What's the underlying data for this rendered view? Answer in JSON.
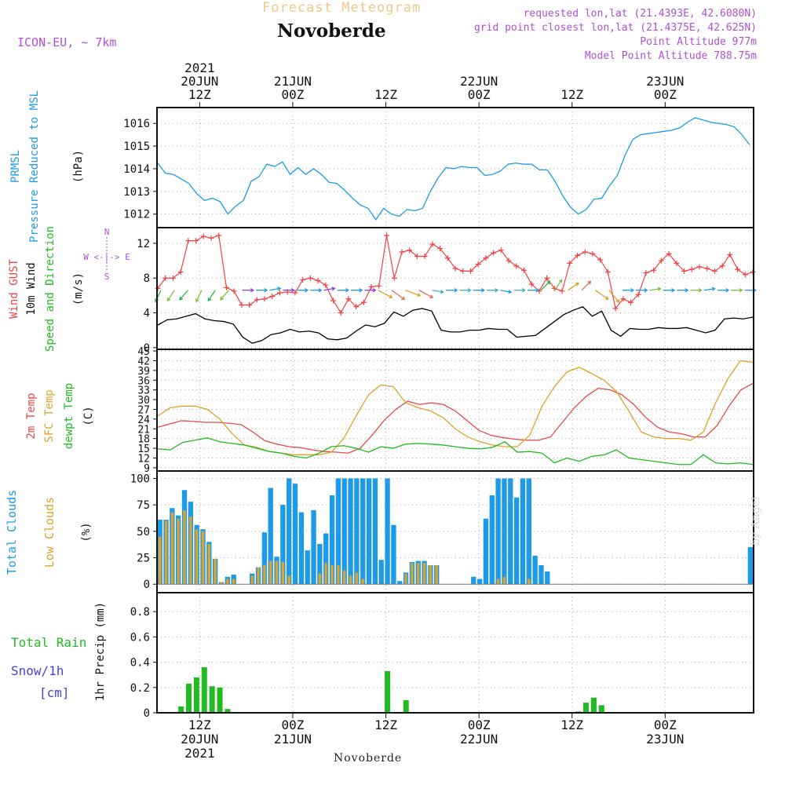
{
  "header": {
    "title": "Novoberde",
    "subtitle": "Forecast Meteogram",
    "model": "ICON-EU, ~ 7km",
    "requested": "requested lon,lat (21.4393E, 42.6080N)",
    "gridpoint": "grid point closest lon,lat (21.4375E, 42.625N)",
    "point_alt": "Point Altitude 977m",
    "model_alt": "Model Point Altitude 788.75m",
    "footer": "Novoberde",
    "watermark": "by Angel"
  },
  "time_axis": {
    "top": [
      {
        "t": 12,
        "l1": "2021",
        "l2": "20JUN",
        "l3": "12Z"
      },
      {
        "t": 24,
        "l2": "21JUN",
        "l3": "00Z"
      },
      {
        "t": 36,
        "l3": "12Z"
      },
      {
        "t": 48,
        "l2": "22JUN",
        "l3": "00Z"
      },
      {
        "t": 60,
        "l3": "12Z"
      },
      {
        "t": 72,
        "l2": "23JUN",
        "l3": "00Z"
      }
    ],
    "bottom": [
      {
        "t": 12,
        "l1": "12Z",
        "l2": "20JUN",
        "l3": "2021"
      },
      {
        "t": 24,
        "l1": "00Z",
        "l2": "21JUN"
      },
      {
        "t": 36,
        "l1": "12Z"
      },
      {
        "t": 48,
        "l1": "00Z",
        "l2": "22JUN"
      },
      {
        "t": 60,
        "l1": "12Z"
      },
      {
        "t": 72,
        "l1": "00Z",
        "l2": "23JUN"
      }
    ],
    "t_range": [
      6.5,
      83.4
    ]
  },
  "colors": {
    "pressure": "#1e9be8",
    "gust": "#ee4444",
    "wind": "#000000",
    "t2m": "#e84a4a",
    "tsfc": "#e0a32a",
    "dewpt": "#22bb22",
    "total_cloud": "#1e9be8",
    "low_cloud": "#e0a32a",
    "rain": "#22bb22",
    "snow": "#4444dd",
    "title_pink": "#b050d8",
    "subtitle_gold": "#f0c88a",
    "grid": "#aaaaaa"
  },
  "chart_data": [
    {
      "type": "line",
      "panel": "pressure",
      "ylabel": [
        "PRMSL",
        "Pressure Reduced to MSL",
        "(hPa)"
      ],
      "ylim": [
        1011.4,
        1016.7
      ],
      "yticks": [
        1012,
        1013,
        1014,
        1015,
        1016
      ],
      "series": [
        {
          "values": [
            1014.25,
            1013.8,
            1013.75,
            1013.55,
            1013.35,
            1012.9,
            1012.6,
            1012.7,
            1012.55,
            1012.0,
            1012.35,
            1012.6,
            1013.45,
            1013.65,
            1014.2,
            1014.1,
            1014.3,
            1013.75,
            1014.05,
            1013.75,
            1014.0,
            1013.75,
            1013.4,
            1013.35,
            1013.05,
            1012.7,
            1012.4,
            1012.25,
            1011.75,
            1012.25,
            1012.0,
            1011.9,
            1012.2,
            1012.15,
            1012.25,
            1013.0,
            1013.6,
            1014.05,
            1014.0,
            1014.1,
            1014.05,
            1014.05,
            1013.7,
            1013.75,
            1013.9,
            1014.2,
            1014.25,
            1014.2,
            1014.2,
            1013.95,
            1013.95,
            1013.45,
            1012.8,
            1012.3,
            1012.0,
            1012.2,
            1012.65,
            1012.7,
            1013.25,
            1013.7,
            1014.6,
            1015.3,
            1015.5,
            1015.55,
            1015.6,
            1015.65,
            1015.7,
            1015.8,
            1016.05,
            1016.25,
            1016.15,
            1016.05,
            1016.0,
            1015.95,
            1015.85,
            1015.5,
            1015.05
          ]
        }
      ]
    },
    {
      "type": "line",
      "panel": "wind",
      "ylabel": [
        "Wind GUST",
        "10m Wind",
        "Speed and Direction",
        "(m/s)"
      ],
      "compass": [
        "N",
        "W <-|-> E",
        "S"
      ],
      "ylim": [
        -0.2,
        13.8
      ],
      "yticks": [
        0,
        4,
        8,
        12
      ],
      "series": [
        {
          "name": "Wind GUST",
          "values": [
            6.8,
            8.0,
            8.0,
            8.7,
            12.3,
            12.3,
            12.8,
            12.6,
            12.9,
            6.9,
            6.5,
            4.9,
            4.9,
            5.5,
            5.6,
            5.9,
            6.3,
            6.4,
            6.3,
            7.8,
            8.0,
            7.7,
            7.2,
            5.4,
            4.0,
            5.6,
            4.7,
            5.2,
            7.0,
            7.1,
            12.9,
            8.0,
            11.0,
            11.2,
            10.5,
            10.5,
            11.9,
            11.4,
            10.3,
            9.1,
            8.8,
            8.8,
            9.6,
            10.3,
            10.9,
            11.2,
            10.0,
            9.4,
            8.9,
            7.3,
            6.5,
            8.0,
            6.8,
            6.5,
            9.7,
            10.6,
            11.0,
            10.8,
            10.1,
            8.7,
            4.5,
            5.6,
            5.2,
            6.1,
            8.6,
            8.9,
            10.0,
            10.8,
            9.7,
            8.8,
            9.0,
            9.3,
            9.1,
            8.8,
            9.4,
            10.7,
            9.0,
            8.4,
            8.7
          ]
        },
        {
          "name": "10m Wind",
          "values": [
            2.6,
            3.2,
            3.3,
            3.6,
            3.9,
            3.3,
            3.1,
            3.0,
            2.7,
            1.2,
            0.5,
            0.8,
            1.5,
            1.7,
            2.1,
            1.8,
            1.9,
            1.7,
            1.0,
            0.9,
            1.1,
            1.9,
            2.6,
            2.4,
            2.8,
            4.1,
            3.6,
            4.3,
            4.5,
            4.2,
            2.0,
            1.8,
            1.8,
            2.0,
            2.0,
            2.2,
            2.1,
            2.1,
            1.2,
            1.3,
            1.4,
            2.2,
            3.0,
            3.8,
            4.3,
            4.7,
            3.6,
            4.2,
            2.0,
            1.3,
            2.2,
            2.1,
            2.1,
            2.3,
            2.2,
            2.2,
            2.3,
            2.0,
            1.7,
            2.0,
            3.3,
            3.4,
            3.3,
            3.5
          ]
        }
      ]
    },
    {
      "type": "line",
      "panel": "temperature",
      "ylabel": [
        "2m Temp",
        "SFC Temp",
        "dewpt Temp",
        "(C)"
      ],
      "ylim": [
        8,
        45.5
      ],
      "yticks": [
        9,
        12,
        15,
        18,
        21,
        24,
        27,
        30,
        33,
        36,
        39,
        42,
        45
      ],
      "series": [
        {
          "name": "2m Temp",
          "values": [
            21.5,
            22.5,
            23.5,
            23.3,
            23.0,
            23.0,
            22.7,
            22.3,
            20.0,
            17.3,
            16.3,
            15.5,
            15.2,
            14.5,
            14.0,
            13.8,
            13.5,
            15.0,
            19.0,
            23.5,
            27.0,
            29.5,
            28.5,
            29.0,
            28.5,
            26.5,
            23.5,
            20.5,
            19.0,
            18.3,
            17.8,
            17.5,
            17.5,
            18.5,
            23.0,
            27.5,
            31.0,
            33.5,
            33.0,
            31.5,
            28.5,
            24.5,
            21.5,
            20.0,
            19.5,
            18.5,
            18.5,
            22.0,
            28.0,
            33.0,
            35.0
          ]
        },
        {
          "name": "SFC Temp",
          "values": [
            25.0,
            27.5,
            28.0,
            28.0,
            27.0,
            24.0,
            19.5,
            16.0,
            15.3,
            14.0,
            13.5,
            13.0,
            13.0,
            13.0,
            13.8,
            18.0,
            25.0,
            31.5,
            34.5,
            34.0,
            29.0,
            27.5,
            26.5,
            24.5,
            21.0,
            18.5,
            17.0,
            16.0,
            15.5,
            15.5,
            19.0,
            28.0,
            34.0,
            38.5,
            40.0,
            38.0,
            36.0,
            32.5,
            26.5,
            20.0,
            18.5,
            18.0,
            18.0,
            17.5,
            20.0,
            29.0,
            36.5,
            42.0,
            41.5
          ]
        },
        {
          "name": "dewpt Temp",
          "values": [
            14.8,
            14.5,
            16.8,
            17.5,
            18.2,
            17.0,
            16.5,
            16.0,
            15.0,
            14.0,
            13.5,
            12.5,
            12.0,
            13.5,
            15.5,
            15.8,
            15.0,
            13.8,
            15.5,
            15.0,
            16.3,
            16.5,
            16.3,
            16.0,
            15.5,
            15.0,
            14.8,
            15.3,
            17.0,
            13.8,
            14.0,
            13.5,
            10.5,
            12.0,
            11.0,
            12.5,
            13.0,
            14.5,
            12.0,
            11.5,
            11.0,
            10.5,
            10.0,
            10.0,
            13.0,
            10.5,
            10.2,
            10.5,
            10.0
          ]
        }
      ]
    },
    {
      "type": "bar",
      "panel": "clouds",
      "ylabel": [
        "Total Clouds",
        "Low Clouds",
        "(%)"
      ],
      "ylim": [
        -8,
        107
      ],
      "yticks": [
        0,
        25,
        50,
        75,
        100
      ],
      "series": [
        {
          "name": "Total Clouds",
          "values": [
            61,
            61,
            72,
            65,
            89,
            78,
            56,
            52,
            40,
            24,
            2,
            7,
            9,
            0,
            0,
            10,
            16,
            49,
            91,
            26,
            75,
            100,
            95,
            68,
            32,
            70,
            38,
            48,
            84,
            100,
            100,
            100,
            100,
            100,
            100,
            100,
            23,
            100,
            56,
            3,
            11,
            21,
            22,
            22,
            18,
            18,
            0,
            0,
            0,
            0,
            0,
            7,
            5,
            62,
            84,
            100,
            100,
            100,
            82,
            100,
            100,
            27,
            18,
            12,
            0,
            0,
            0,
            0,
            0,
            0,
            0,
            0,
            0,
            0,
            0,
            0,
            0,
            0,
            0,
            0,
            0,
            0,
            0,
            0,
            0,
            0,
            0,
            0,
            0,
            0,
            0,
            0,
            0,
            0,
            0,
            0,
            35
          ]
        },
        {
          "name": "Low Clouds",
          "values": [
            45,
            60,
            68,
            62,
            70,
            64,
            52,
            50,
            38,
            24,
            2,
            5,
            5,
            0,
            0,
            8,
            16,
            18,
            22,
            22,
            21,
            8,
            0,
            0,
            0,
            0,
            10,
            20,
            18,
            18,
            13,
            8,
            11,
            5,
            0,
            0,
            0,
            0,
            0,
            0,
            10,
            20,
            20,
            20,
            18,
            18,
            0,
            0,
            0,
            0,
            0,
            0,
            0,
            0,
            0,
            5,
            7,
            0,
            0,
            0,
            5,
            0,
            0,
            0,
            0,
            0,
            0,
            0,
            0,
            0,
            0,
            0,
            0,
            0,
            0,
            0,
            0,
            0,
            0,
            0,
            0,
            0,
            0,
            0,
            0,
            0,
            0,
            0,
            0,
            0,
            0,
            0,
            0,
            0,
            0,
            0,
            0
          ]
        }
      ]
    },
    {
      "type": "bar",
      "panel": "precip",
      "ylabel": [
        "1hr Precip (mm)"
      ],
      "left_labels": [
        "Total Rain",
        "Snow/1h",
        "[cm]"
      ],
      "ylim": [
        0,
        0.95
      ],
      "yticks": [
        0,
        0.2,
        0.4,
        0.6,
        0.8
      ],
      "series": [
        {
          "name": "Total Rain",
          "values": [
            0.05,
            0.23,
            0.28,
            0.36,
            0.21,
            0.2,
            0.03,
            0.33,
            0.1,
            0.01,
            0.08,
            0.12,
            0.06
          ]
        }
      ]
    }
  ]
}
